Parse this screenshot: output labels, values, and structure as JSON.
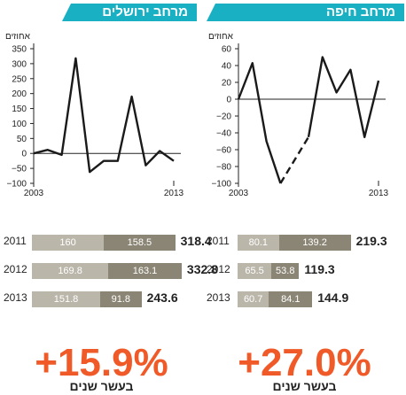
{
  "accent_color": "#1ab0c4",
  "growth_color": "#f05a28",
  "bar_colors": [
    "#bbb6aa",
    "#8b8575"
  ],
  "chart_data": [
    {
      "type": "line",
      "title": "מרחב חיפה",
      "ylabel": "אחוזים",
      "x_tick_labels": [
        "2003",
        "2013"
      ],
      "y_ticks": [
        -100,
        -80,
        -60,
        -40,
        -20,
        0,
        20,
        40,
        60
      ],
      "ylim": [
        -100,
        60
      ],
      "xlim": [
        2003,
        2013
      ],
      "series": [
        {
          "style": "solid",
          "x": [
            2003,
            2004,
            2005,
            2006
          ],
          "y": [
            0,
            43,
            -50,
            -100
          ]
        },
        {
          "style": "dashed",
          "x": [
            2006,
            2008
          ],
          "y": [
            -100,
            -45
          ]
        },
        {
          "style": "solid",
          "x": [
            2008,
            2009,
            2010,
            2011,
            2012,
            2013
          ],
          "y": [
            -45,
            50,
            8,
            35,
            -45,
            22
          ]
        }
      ],
      "bars": [
        {
          "year": "2011",
          "a": 80.1,
          "b": 139.2,
          "total": "219.3"
        },
        {
          "year": "2012",
          "a": 65.5,
          "b": 53.8,
          "total": "119.3"
        },
        {
          "year": "2013",
          "a": 60.7,
          "b": 84.1,
          "total": "144.9"
        }
      ],
      "bar_max": 220,
      "growth": "+27.0%",
      "growth_caption": "בעשר שנים"
    },
    {
      "type": "line",
      "title": "מרחב ירושלים",
      "ylabel": "אחוזים",
      "x_tick_labels": [
        "2003",
        "2013"
      ],
      "y_ticks": [
        -100,
        -50,
        0,
        50,
        100,
        150,
        200,
        250,
        300,
        350
      ],
      "ylim": [
        -100,
        350
      ],
      "xlim": [
        2003,
        2013
      ],
      "series": [
        {
          "style": "solid",
          "x": [
            2003,
            2004,
            2005,
            2006,
            2007,
            2008,
            2009,
            2010,
            2011,
            2012,
            2013
          ],
          "y": [
            0,
            12,
            -5,
            318,
            -62,
            -25,
            -25,
            190,
            -40,
            8,
            -25
          ]
        }
      ],
      "bars": [
        {
          "year": "2011",
          "a": 160,
          "b": 158.5,
          "total": "318.4"
        },
        {
          "year": "2012",
          "a": 169.8,
          "b": 163.1,
          "total": "332.8"
        },
        {
          "year": "2013",
          "a": 151.8,
          "b": 91.8,
          "total": "243.6"
        }
      ],
      "bar_max": 335,
      "growth": "+15.9%",
      "growth_caption": "בעשר שנים"
    }
  ]
}
